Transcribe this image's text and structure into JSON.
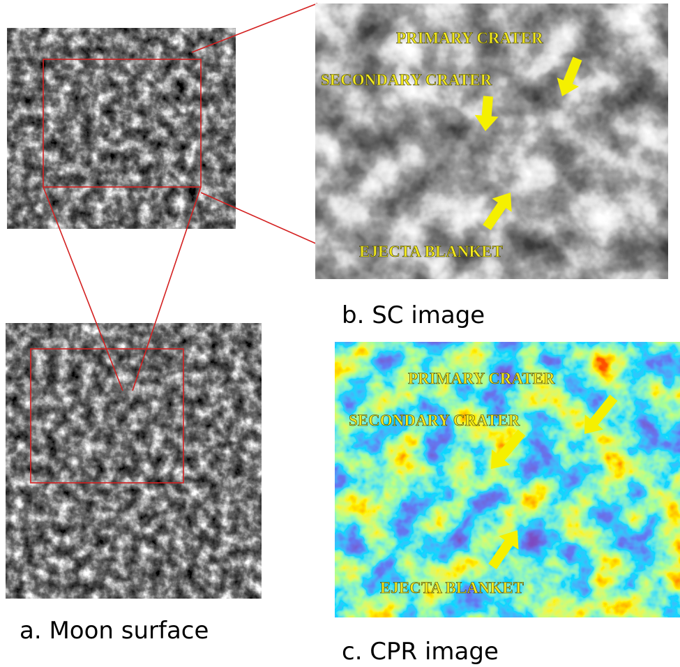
{
  "panels": {
    "a": {
      "caption": "a. Moon surface"
    },
    "b": {
      "caption": "b. SC image",
      "labels": [
        "PRIMARY CRATER",
        "SECONDARY CRATER",
        "EJECTA BLANKET"
      ]
    },
    "c": {
      "caption": "c. CPR image",
      "labels": [
        "PRIMARY CRATER",
        "SECONDARY CRATER",
        "EJECTA BLANKET"
      ]
    }
  }
}
